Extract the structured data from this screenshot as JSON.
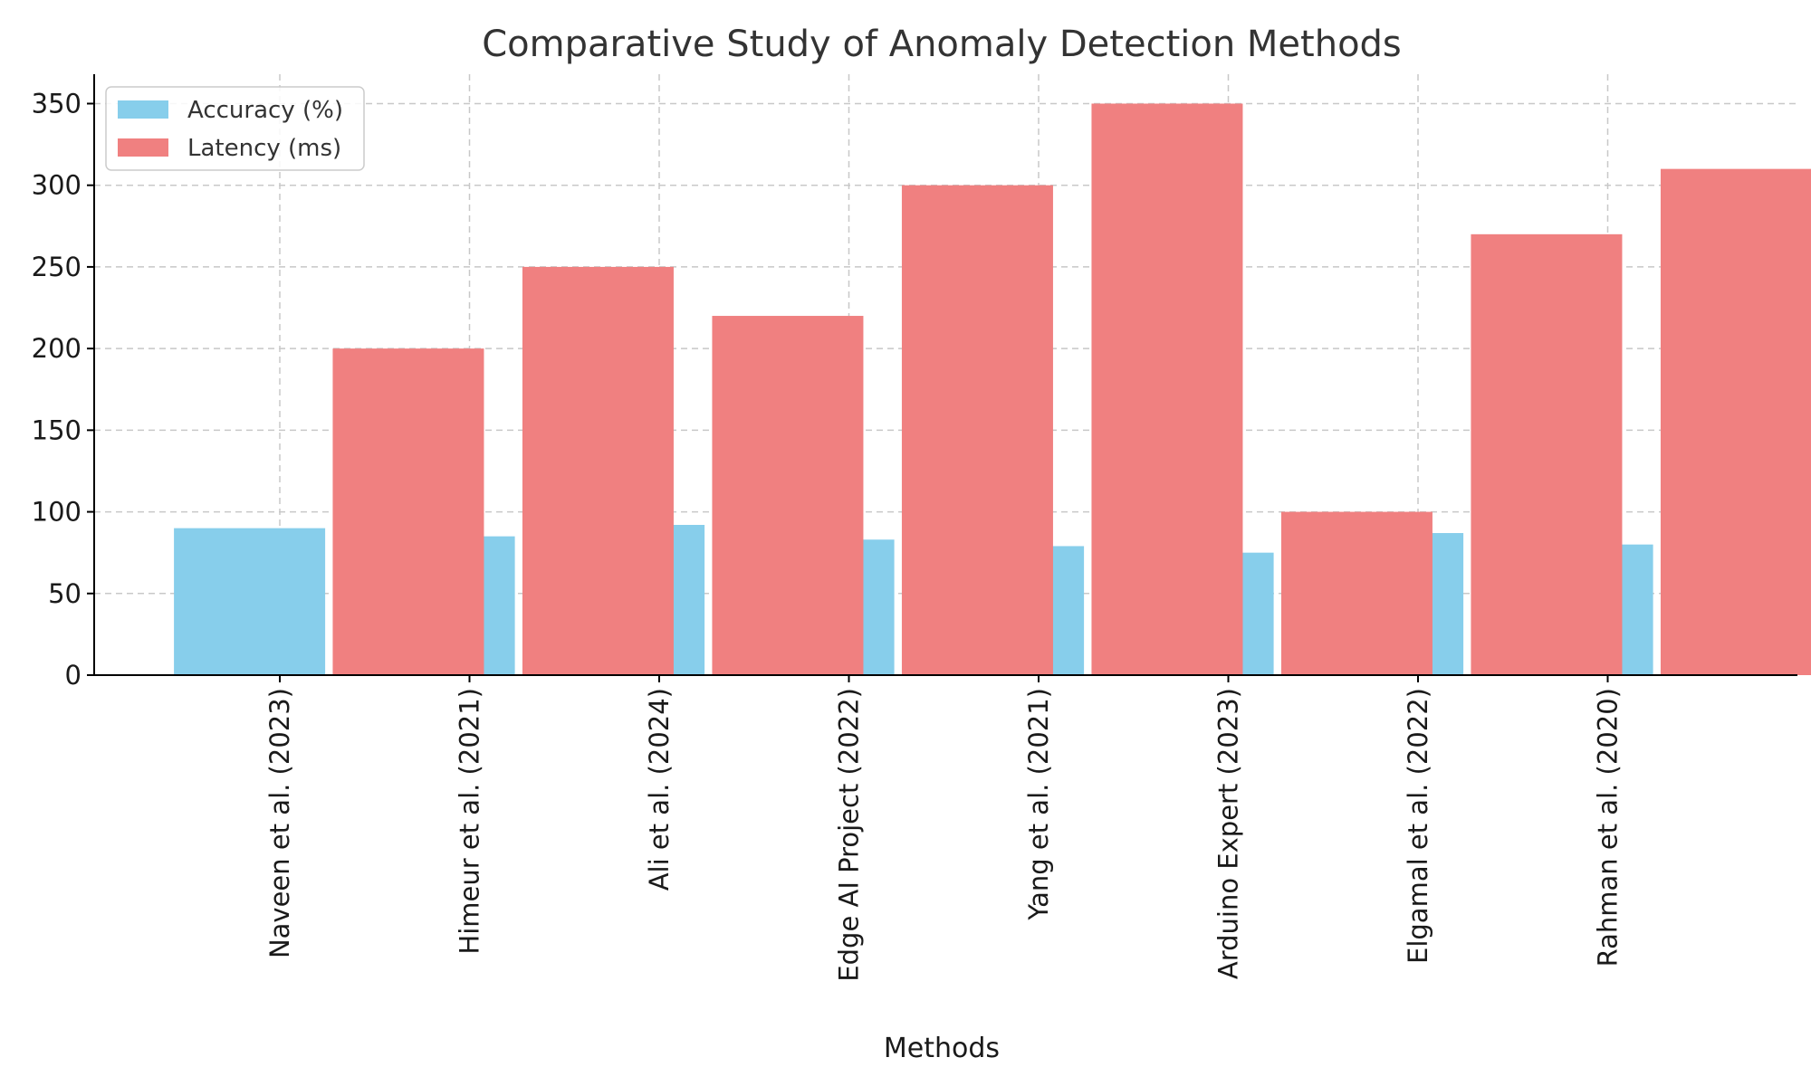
{
  "chart_data": {
    "type": "bar",
    "title": "Comparative Study of Anomaly Detection Methods",
    "xlabel": "Methods",
    "ylabel": "",
    "categories": [
      "Naveen et al. (2023)",
      "Himeur et al. (2021)",
      "Ali et al. (2024)",
      "Edge AI Project (2022)",
      "Yang et al. (2021)",
      "Arduino Expert (2023)",
      "Elgamal et al. (2022)",
      "Rahman et al. (2020)"
    ],
    "series": [
      {
        "name": "Accuracy (%)",
        "color": "#87CEEB",
        "values": [
          90,
          85,
          92,
          83,
          79,
          75,
          87,
          80
        ]
      },
      {
        "name": "Latency (ms)",
        "color": "#F08080",
        "values": [
          200,
          250,
          220,
          300,
          350,
          100,
          270,
          310
        ]
      }
    ],
    "ylim": [
      0,
      368
    ],
    "yticks": [
      0,
      50,
      100,
      150,
      200,
      250,
      300,
      350
    ],
    "grid": true,
    "legend_position": "top-left"
  }
}
